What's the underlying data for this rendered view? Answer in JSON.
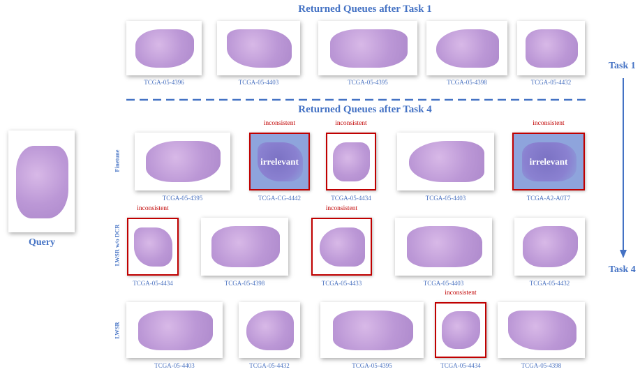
{
  "query": {
    "label": "Query"
  },
  "task1": {
    "title": "Returned Queues after Task 1",
    "items": [
      {
        "id": "TCGA-05-4396"
      },
      {
        "id": "TCGA-05-4403"
      },
      {
        "id": "TCGA-05-4395"
      },
      {
        "id": "TCGA-05-4398"
      },
      {
        "id": "TCGA-05-4432"
      }
    ]
  },
  "task4": {
    "title": "Returned Queues after Task 4",
    "rows": [
      {
        "label": "Finetune",
        "items": [
          {
            "id": "TCGA-05-4395"
          },
          {
            "id": "TCGA-CG-4442",
            "flag": "inconsistent",
            "overlay": "irrelevant"
          },
          {
            "id": "TCGA-05-4434",
            "flag": "inconsistent"
          },
          {
            "id": "TCGA-05-4403"
          },
          {
            "id": "TCGA-A2-A0T7",
            "flag": "inconsistent",
            "overlay": "irrelevant"
          }
        ]
      },
      {
        "label": "LWSR w/o DCR",
        "items": [
          {
            "id": "TCGA-05-4434",
            "flag": "inconsistent"
          },
          {
            "id": "TCGA-05-4398"
          },
          {
            "id": "TCGA-05-4433",
            "flag": "inconsistent"
          },
          {
            "id": "TCGA-05-4403"
          },
          {
            "id": "TCGA-05-4432"
          }
        ]
      },
      {
        "label": "LWSR",
        "items": [
          {
            "id": "TCGA-05-4403"
          },
          {
            "id": "TCGA-05-4432"
          },
          {
            "id": "TCGA-05-4395"
          },
          {
            "id": "TCGA-05-4434",
            "flag": "inconsistent"
          },
          {
            "id": "TCGA-05-4398"
          }
        ]
      }
    ]
  },
  "timeline": {
    "start": "Task 1",
    "end": "Task 4"
  }
}
